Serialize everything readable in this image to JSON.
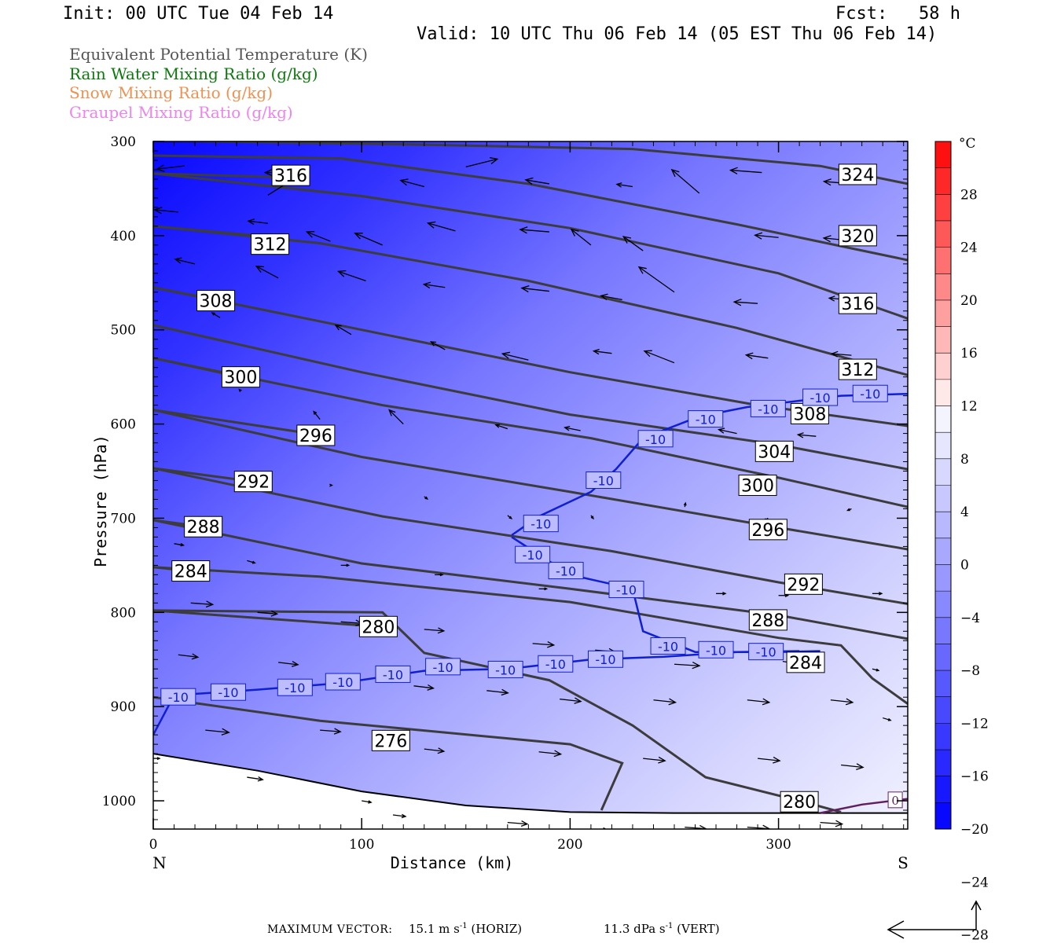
{
  "header": {
    "init": "Init: 00 UTC Tue 04 Feb 14",
    "fcst": "Fcst:   58 h",
    "valid": "Valid: 10 UTC Thu 06 Feb 14 (05 EST Thu 06 Feb 14)"
  },
  "legend": [
    {
      "text": "Equivalent Potential Temperature (K)",
      "color": "#555555"
    },
    {
      "text": "Rain Water Mixing Ratio (g/kg)",
      "color": "#0a7a0a"
    },
    {
      "text": "Snow Mixing Ratio (g/kg)",
      "color": "#f09050"
    },
    {
      "text": "Graupel Mixing Ratio (g/kg)",
      "color": "#ee82ee"
    }
  ],
  "footer": {
    "max_vector_label": "MAXIMUM VECTOR:",
    "horiz_value": "15.1 m s",
    "horiz_exp": "-1",
    "horiz_tag": "(HORIZ)",
    "vert_value": "11.3 dPa s",
    "vert_exp": "-1",
    "vert_tag": "(VERT)"
  },
  "chart_data": {
    "type": "cross-section",
    "xlabel": "Distance (km)",
    "ylabel": "Pressure (hPa)",
    "xlim": [
      0,
      362
    ],
    "ylim": [
      1030,
      300
    ],
    "x_ticks": [
      0,
      100,
      200,
      300
    ],
    "y_ticks": [
      300,
      400,
      500,
      600,
      700,
      800,
      900,
      1000
    ],
    "endpoint_left": "N",
    "endpoint_right": "S",
    "colorbar": {
      "unit": "°C",
      "labels": [
        28,
        24,
        20,
        16,
        12,
        8,
        4,
        0,
        -4,
        -8,
        -12,
        -16,
        -20,
        -24,
        -28
      ],
      "colors": [
        "#ff1010",
        "#ff2828",
        "#ff4040",
        "#ff5858",
        "#ff7070",
        "#ff8888",
        "#ffa0a0",
        "#ffb8b8",
        "#ffd0d0",
        "#ffe8e8",
        "#f4f4ff",
        "#e6e6ff",
        "#d8d8ff",
        "#c8c8ff",
        "#b8b8ff",
        "#a8a8ff",
        "#9898ff",
        "#8888ff",
        "#7878ff",
        "#6868ff",
        "#5858ff",
        "#4848ff",
        "#3838ff",
        "#2828ff",
        "#1818ff",
        "#0808ff"
      ]
    },
    "theta_e": [
      {
        "label": "324",
        "pts": [
          [
            0,
            299
          ],
          [
            120,
            303
          ],
          [
            230,
            308
          ],
          [
            320,
            326
          ],
          [
            362,
            345
          ]
        ],
        "lx": 338,
        "lp": 335
      },
      {
        "label": "320",
        "pts": [
          [
            0,
            315
          ],
          [
            90,
            318
          ],
          [
            180,
            345
          ],
          [
            280,
            388
          ],
          [
            362,
            426
          ]
        ],
        "lx": 338,
        "lp": 400
      },
      {
        "label": "316",
        "pts": [
          [
            0,
            334
          ],
          [
            100,
            358
          ],
          [
            200,
            392
          ],
          [
            300,
            440
          ],
          [
            362,
            488
          ]
        ],
        "lx": 338,
        "lp": 472
      },
      {
        "label": "316",
        "pts": [
          [
            0,
            334
          ],
          [
            60,
            338
          ]
        ],
        "lx": 66,
        "lp": 336
      },
      {
        "label": "312",
        "pts": [
          [
            0,
            390
          ],
          [
            80,
            408
          ],
          [
            180,
            448
          ],
          [
            280,
            498
          ],
          [
            362,
            548
          ]
        ],
        "lx": 338,
        "lp": 542
      },
      {
        "label": "312",
        "pts": [
          [
            0,
            390
          ],
          [
            60,
            402
          ]
        ],
        "lx": 56,
        "lp": 409
      },
      {
        "label": "308",
        "pts": [
          [
            0,
            455
          ],
          [
            100,
            500
          ],
          [
            200,
            545
          ],
          [
            290,
            580
          ],
          [
            362,
            602
          ]
        ],
        "lx": 315,
        "lp": 589
      },
      {
        "label": "308",
        "pts": [
          [
            0,
            455
          ],
          [
            30,
            468
          ]
        ],
        "lx": 30,
        "lp": 469
      },
      {
        "label": "304",
        "pts": [
          [
            0,
            495
          ],
          [
            100,
            545
          ],
          [
            200,
            590
          ],
          [
            300,
            622
          ],
          [
            362,
            648
          ]
        ],
        "lx": 298,
        "lp": 629
      },
      {
        "label": "300",
        "pts": [
          [
            0,
            530
          ],
          [
            110,
            580
          ],
          [
            210,
            615
          ],
          [
            300,
            657
          ],
          [
            362,
            688
          ]
        ],
        "lx": 290,
        "lp": 665
      },
      {
        "label": "300",
        "pts": [
          [
            0,
            530
          ],
          [
            42,
            550
          ]
        ],
        "lx": 42,
        "lp": 550
      },
      {
        "label": "296",
        "pts": [
          [
            0,
            585
          ],
          [
            100,
            635
          ],
          [
            200,
            672
          ],
          [
            300,
            710
          ],
          [
            362,
            733
          ]
        ],
        "lx": 295,
        "lp": 712
      },
      {
        "label": "296",
        "pts": [
          [
            0,
            585
          ],
          [
            78,
            611
          ]
        ],
        "lx": 78,
        "lp": 612
      },
      {
        "label": "292",
        "pts": [
          [
            0,
            647
          ],
          [
            110,
            698
          ],
          [
            220,
            735
          ],
          [
            300,
            768
          ],
          [
            362,
            791
          ]
        ],
        "lx": 312,
        "lp": 770
      },
      {
        "label": "292",
        "pts": [
          [
            0,
            647
          ],
          [
            48,
            661
          ]
        ],
        "lx": 48,
        "lp": 661
      },
      {
        "label": "288",
        "pts": [
          [
            0,
            702
          ],
          [
            100,
            748
          ],
          [
            200,
            775
          ],
          [
            300,
            803
          ],
          [
            362,
            828
          ]
        ],
        "lx": 295,
        "lp": 808
      },
      {
        "label": "288",
        "pts": [
          [
            0,
            702
          ],
          [
            24,
            709
          ]
        ],
        "lx": 24,
        "lp": 709
      },
      {
        "label": "284",
        "pts": [
          [
            0,
            752
          ],
          [
            80,
            762
          ],
          [
            200,
            789
          ],
          [
            300,
            827
          ],
          [
            330,
            835
          ],
          [
            345,
            870
          ],
          [
            362,
            897
          ]
        ],
        "lx": 313,
        "lp": 853
      },
      {
        "label": "284",
        "pts": [
          [
            0,
            752
          ],
          [
            18,
            756
          ]
        ],
        "lx": 18,
        "lp": 756
      },
      {
        "label": "280",
        "pts": [
          [
            0,
            798
          ],
          [
            110,
            800
          ],
          [
            130,
            843
          ],
          [
            190,
            872
          ],
          [
            230,
            920
          ],
          [
            265,
            975
          ],
          [
            310,
            1000
          ],
          [
            330,
            1012
          ]
        ],
        "lx": 310,
        "lp": 1001
      },
      {
        "label": "280",
        "pts": [
          [
            0,
            798
          ],
          [
            108,
            815
          ]
        ],
        "lx": 108,
        "lp": 815
      },
      {
        "label": "276",
        "pts": [
          [
            0,
            890
          ],
          [
            80,
            915
          ],
          [
            200,
            940
          ],
          [
            225,
            960
          ],
          [
            215,
            1010
          ]
        ],
        "lx": 114,
        "lp": 936
      }
    ],
    "temp_contours": [
      {
        "label": "-10",
        "pts": [
          [
            0,
            930
          ],
          [
            10,
            888
          ],
          [
            50,
            882
          ],
          [
            90,
            875
          ],
          [
            130,
            862
          ],
          [
            170,
            860
          ],
          [
            210,
            850
          ],
          [
            245,
            847
          ],
          [
            280,
            842
          ],
          [
            310,
            841
          ]
        ]
      },
      {
        "label": "-10",
        "pts": [
          [
            172,
            718
          ],
          [
            185,
            698
          ],
          [
            210,
            672
          ],
          [
            222,
            648
          ],
          [
            235,
            615
          ],
          [
            262,
            592
          ],
          [
            285,
            582
          ],
          [
            330,
            570
          ],
          [
            362,
            568
          ]
        ]
      },
      {
        "label": "-10",
        "pts": [
          [
            172,
            720
          ],
          [
            200,
            760
          ],
          [
            230,
            775
          ],
          [
            235,
            820
          ],
          [
            260,
            842
          ],
          [
            300,
            842
          ],
          [
            320,
            841
          ]
        ]
      }
    ],
    "temp_labels": [
      {
        "label": "-10",
        "x": 12,
        "p": 890
      },
      {
        "label": "-10",
        "x": 36,
        "p": 885
      },
      {
        "label": "-10",
        "x": 68,
        "p": 880
      },
      {
        "label": "-10",
        "x": 91,
        "p": 874
      },
      {
        "label": "-10",
        "x": 115,
        "p": 866
      },
      {
        "label": "-10",
        "x": 139,
        "p": 858
      },
      {
        "label": "-10",
        "x": 169,
        "p": 861
      },
      {
        "label": "-10",
        "x": 193,
        "p": 855
      },
      {
        "label": "-10",
        "x": 217,
        "p": 850
      },
      {
        "label": "-10",
        "x": 227,
        "p": 776
      },
      {
        "label": "-10",
        "x": 198,
        "p": 756
      },
      {
        "label": "-10",
        "x": 182,
        "p": 739
      },
      {
        "label": "-10",
        "x": 186,
        "p": 706
      },
      {
        "label": "-10",
        "x": 216,
        "p": 660
      },
      {
        "label": "-10",
        "x": 241,
        "p": 616
      },
      {
        "label": "-10",
        "x": 265,
        "p": 595
      },
      {
        "label": "-10",
        "x": 295,
        "p": 584
      },
      {
        "label": "-10",
        "x": 320,
        "p": 572
      },
      {
        "label": "-10",
        "x": 344,
        "p": 568
      },
      {
        "label": "-10",
        "x": 247,
        "p": 836
      },
      {
        "label": "-10",
        "x": 270,
        "p": 840
      },
      {
        "label": "-10",
        "x": 294,
        "p": 842
      }
    ],
    "snow_contour": {
      "label": "0",
      "pts": [
        [
          320,
          1013
        ],
        [
          340,
          1004
        ],
        [
          362,
          998
        ]
      ],
      "lx": 356,
      "lp": 999
    },
    "ground_pressure": [
      [
        0,
        950
      ],
      [
        50,
        968
      ],
      [
        100,
        990
      ],
      [
        150,
        1005
      ],
      [
        200,
        1012
      ],
      [
        250,
        1013
      ],
      [
        362,
        1013
      ]
    ],
    "wind_vectors": [
      [
        15,
        326,
        -35,
        4
      ],
      [
        65,
        333,
        -30,
        0
      ],
      [
        55,
        357,
        40,
        -25
      ],
      [
        130,
        348,
        -30,
        -8
      ],
      [
        150,
        327,
        40,
        -10
      ],
      [
        190,
        345,
        -30,
        -5
      ],
      [
        230,
        348,
        -20,
        -3
      ],
      [
        262,
        355,
        -35,
        -30
      ],
      [
        292,
        333,
        -40,
        -3
      ],
      [
        335,
        345,
        -35,
        -3
      ],
      [
        12,
        375,
        -30,
        -3
      ],
      [
        55,
        387,
        -25,
        -3
      ],
      [
        85,
        406,
        -30,
        -12
      ],
      [
        110,
        410,
        -35,
        -15
      ],
      [
        145,
        395,
        -35,
        -10
      ],
      [
        190,
        396,
        -37,
        -3
      ],
      [
        210,
        410,
        -25,
        -20
      ],
      [
        235,
        416,
        -25,
        -18
      ],
      [
        300,
        402,
        -30,
        -3
      ],
      [
        333,
        405,
        -30,
        -3
      ],
      [
        20,
        430,
        -25,
        -6
      ],
      [
        60,
        445,
        -28,
        -15
      ],
      [
        102,
        448,
        -35,
        -12
      ],
      [
        140,
        455,
        -27,
        -4
      ],
      [
        190,
        459,
        -35,
        -4
      ],
      [
        225,
        468,
        -27,
        -5
      ],
      [
        250,
        460,
        -45,
        -32
      ],
      [
        290,
        472,
        -30,
        -2
      ],
      [
        333,
        468,
        -23,
        -2
      ],
      [
        32,
        487,
        -10,
        -6
      ],
      [
        95,
        505,
        -20,
        -12
      ],
      [
        140,
        521,
        -18,
        -10
      ],
      [
        180,
        532,
        -33,
        -8
      ],
      [
        220,
        525,
        -23,
        -3
      ],
      [
        250,
        535,
        -38,
        -15
      ],
      [
        295,
        530,
        -28,
        -4
      ],
      [
        335,
        527,
        -25,
        -2
      ],
      [
        42,
        565,
        -2,
        -2
      ],
      [
        80,
        595,
        -8,
        -10
      ],
      [
        120,
        600,
        -18,
        -18
      ],
      [
        170,
        605,
        -15,
        -5
      ],
      [
        205,
        607,
        -20,
        -4
      ],
      [
        280,
        610,
        -23,
        -5
      ],
      [
        318,
        613,
        -23,
        -2
      ],
      [
        45,
        660,
        -2,
        -4
      ],
      [
        85,
        665,
        2,
        0
      ],
      [
        130,
        677,
        4,
        3
      ],
      [
        170,
        697,
        5,
        4
      ],
      [
        210,
        697,
        3,
        4
      ],
      [
        255,
        688,
        1,
        -5
      ],
      [
        295,
        700,
        -5,
        3
      ],
      [
        335,
        690,
        -5,
        2
      ],
      [
        10,
        727,
        12,
        2
      ],
      [
        45,
        745,
        10,
        3
      ],
      [
        90,
        750,
        10,
        0
      ],
      [
        135,
        760,
        10,
        0
      ],
      [
        185,
        775,
        10,
        0
      ],
      [
        230,
        777,
        10,
        0
      ],
      [
        270,
        780,
        12,
        0
      ],
      [
        300,
        782,
        12,
        0
      ],
      [
        345,
        780,
        12,
        0
      ],
      [
        18,
        790,
        28,
        2
      ],
      [
        50,
        800,
        25,
        2
      ],
      [
        90,
        810,
        27,
        2
      ],
      [
        130,
        818,
        25,
        2
      ],
      [
        182,
        833,
        27,
        2
      ],
      [
        212,
        840,
        25,
        2
      ],
      [
        250,
        855,
        32,
        2
      ],
      [
        302,
        852,
        12,
        2
      ],
      [
        345,
        860,
        8,
        2
      ],
      [
        12,
        845,
        25,
        3
      ],
      [
        60,
        853,
        25,
        3
      ],
      [
        125,
        878,
        25,
        3
      ],
      [
        160,
        883,
        27,
        3
      ],
      [
        195,
        892,
        27,
        3
      ],
      [
        240,
        893,
        28,
        3
      ],
      [
        285,
        893,
        28,
        3
      ],
      [
        325,
        893,
        28,
        3
      ],
      [
        350,
        912,
        10,
        3
      ],
      [
        25,
        925,
        30,
        3
      ],
      [
        80,
        925,
        26,
        2
      ],
      [
        130,
        945,
        25,
        3
      ],
      [
        185,
        948,
        28,
        3
      ],
      [
        235,
        955,
        28,
        3
      ],
      [
        290,
        955,
        28,
        3
      ],
      [
        330,
        962,
        28,
        3
      ],
      [
        0,
        955,
        8,
        0
      ],
      [
        45,
        975,
        20,
        3
      ],
      [
        100,
        1000,
        12,
        2
      ],
      [
        115,
        1015,
        16,
        2
      ],
      [
        170,
        1023,
        25,
        2
      ],
      [
        210,
        1030,
        22,
        2
      ],
      [
        255,
        1028,
        27,
        2
      ],
      [
        285,
        1028,
        28,
        2
      ],
      [
        320,
        1023,
        28,
        2
      ]
    ]
  }
}
